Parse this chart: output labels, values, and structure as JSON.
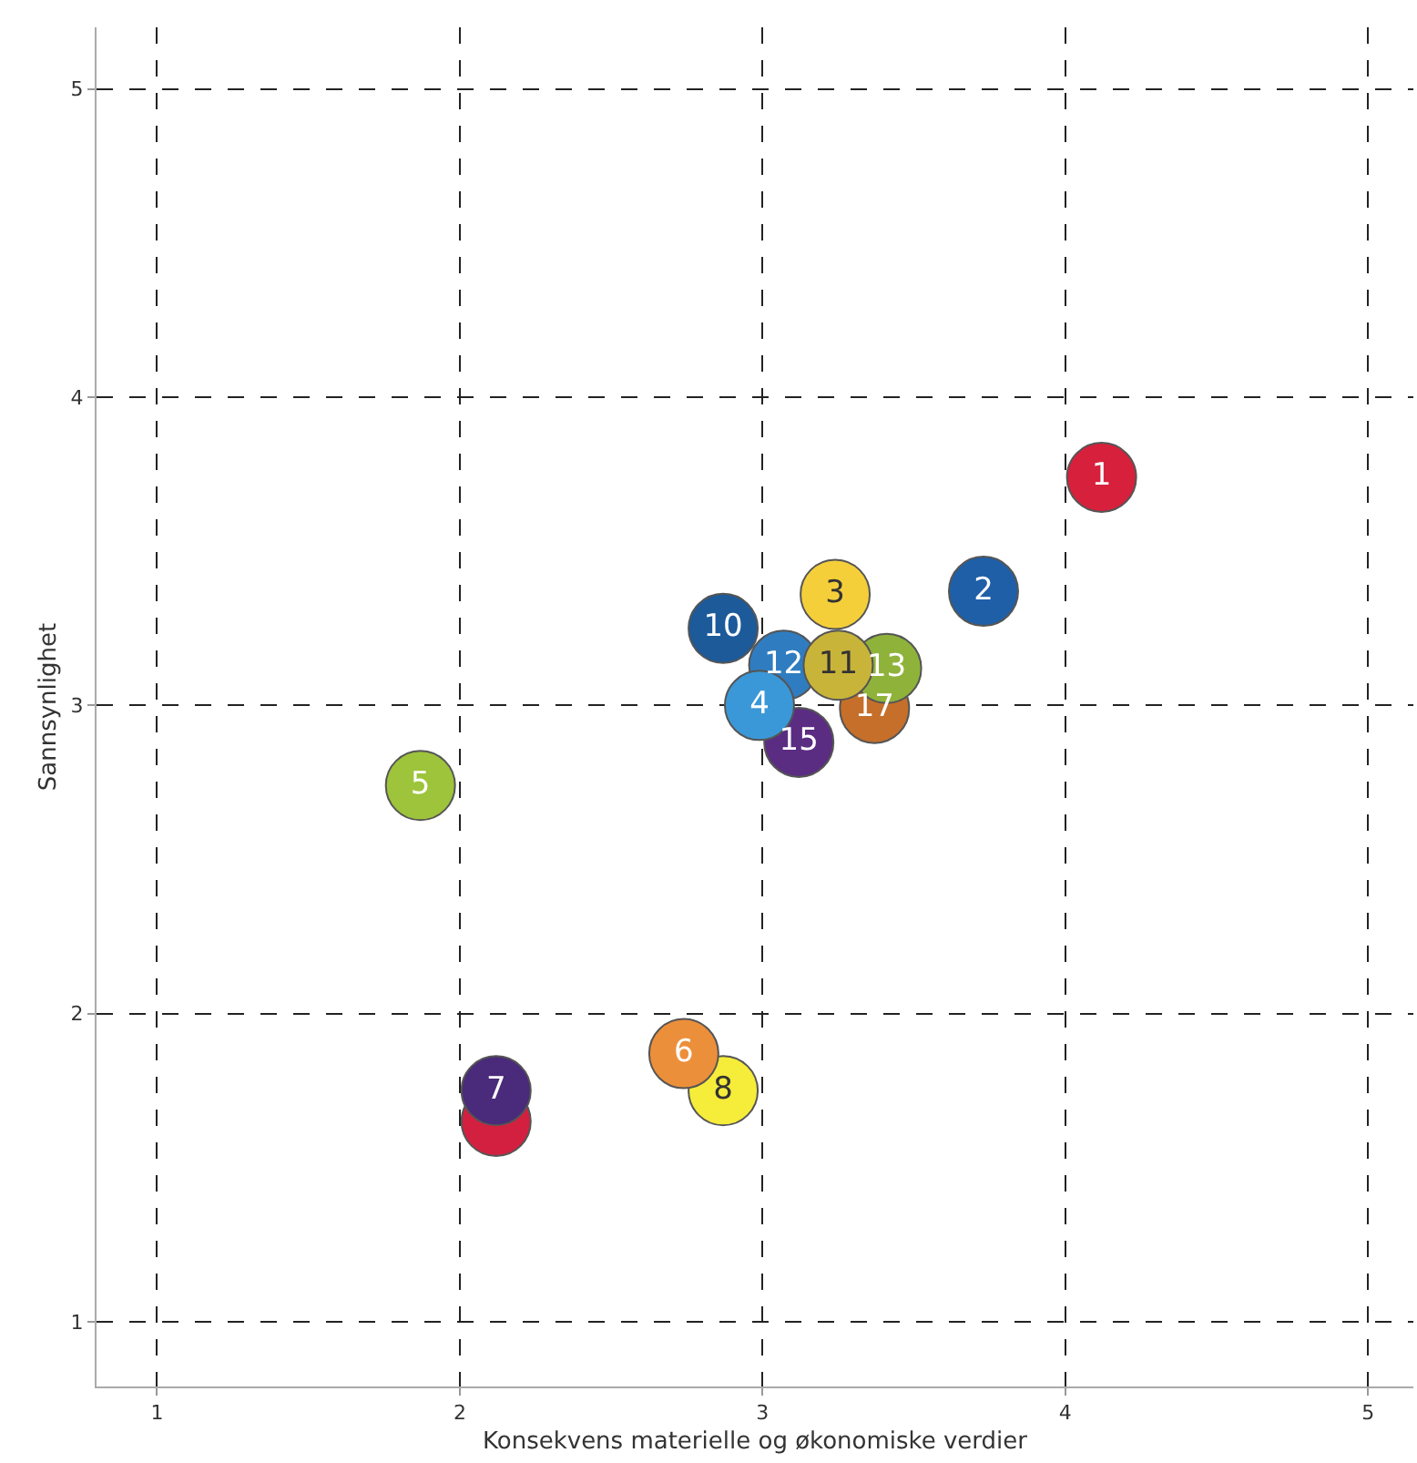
{
  "chart_data": {
    "type": "scatter",
    "xlabel": "Konsekvens materielle og økonomiske verdier",
    "ylabel": "Sannsynlighet",
    "x": [
      2.12,
      2.12,
      2.87,
      2.74,
      3.37,
      3.41,
      3.07,
      3.12,
      2.99,
      3.25,
      3.24,
      2.87,
      3.73,
      4.12,
      1.87
    ],
    "values": [
      1.65,
      1.75,
      1.75,
      1.87,
      2.99,
      3.12,
      3.13,
      2.88,
      3.0,
      3.13,
      3.36,
      3.25,
      3.37,
      3.74,
      2.74
    ],
    "colors": [
      "#d42040",
      "#4a2a7a",
      "#f6ec3a",
      "#ec8f3a",
      "#c56f2a",
      "#8fb33a",
      "#2f7dc0",
      "#5a2d82",
      "#3a98d8",
      "#c9b43a",
      "#f5cf3a",
      "#1c5a9a",
      "#1f5fa8",
      "#d7203c",
      "#9dc43a"
    ],
    "annotations": [
      {
        "text": "7",
        "x": 2.12,
        "y": 1.75
      },
      {
        "text": "8",
        "x": 2.87,
        "y": 1.75
      },
      {
        "text": "6",
        "x": 2.74,
        "y": 1.87
      },
      {
        "text": "17",
        "x": 3.37,
        "y": 2.99
      },
      {
        "text": "13",
        "x": 3.41,
        "y": 3.12
      },
      {
        "text": "12",
        "x": 3.07,
        "y": 3.13
      },
      {
        "text": "15",
        "x": 3.12,
        "y": 2.88
      },
      {
        "text": "4",
        "x": 2.99,
        "y": 3.0
      },
      {
        "text": "11",
        "x": 3.25,
        "y": 3.13
      },
      {
        "text": "3",
        "x": 3.24,
        "y": 3.36
      },
      {
        "text": "10",
        "x": 2.87,
        "y": 3.25
      },
      {
        "text": "2",
        "x": 3.73,
        "y": 3.37
      },
      {
        "text": "1",
        "x": 4.12,
        "y": 3.74
      },
      {
        "text": "5",
        "x": 1.87,
        "y": 2.74
      }
    ],
    "xlim": [
      0.8,
      5.15
    ],
    "ylim": [
      0.79,
      5.2
    ],
    "xticks": [
      1,
      2,
      3,
      4,
      5
    ],
    "yticks": [
      1,
      2,
      3,
      4,
      5
    ],
    "grid": true,
    "marker": "circle"
  }
}
